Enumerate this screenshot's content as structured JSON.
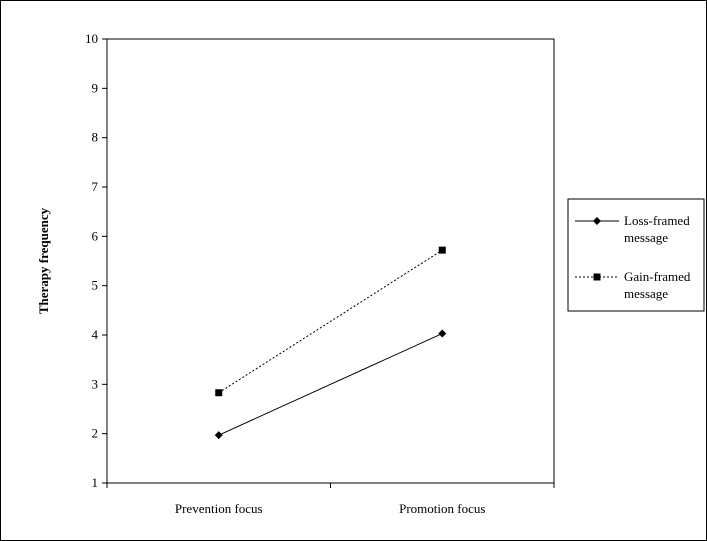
{
  "chart_data": {
    "type": "line",
    "categories": [
      "Prevention focus",
      "Promotion focus"
    ],
    "series": [
      {
        "name": "Loss-framed message",
        "name_lines": [
          "Loss-framed",
          "message"
        ],
        "values": [
          1.97,
          4.03
        ],
        "marker": "diamond",
        "line_style": "solid",
        "color": "#000000"
      },
      {
        "name": "Gain-framed message",
        "name_lines": [
          "Gain-framed",
          "message"
        ],
        "values": [
          2.83,
          5.72
        ],
        "marker": "square",
        "line_style": "dotted",
        "color": "#000000"
      }
    ],
    "title": "",
    "xlabel": "",
    "ylabel": "Therapy frequency",
    "ylim": [
      1,
      10
    ],
    "yticks": [
      "1",
      "2",
      "3",
      "4",
      "5",
      "6",
      "7",
      "8",
      "9",
      "10"
    ],
    "grid": false,
    "legend_position": "right"
  }
}
